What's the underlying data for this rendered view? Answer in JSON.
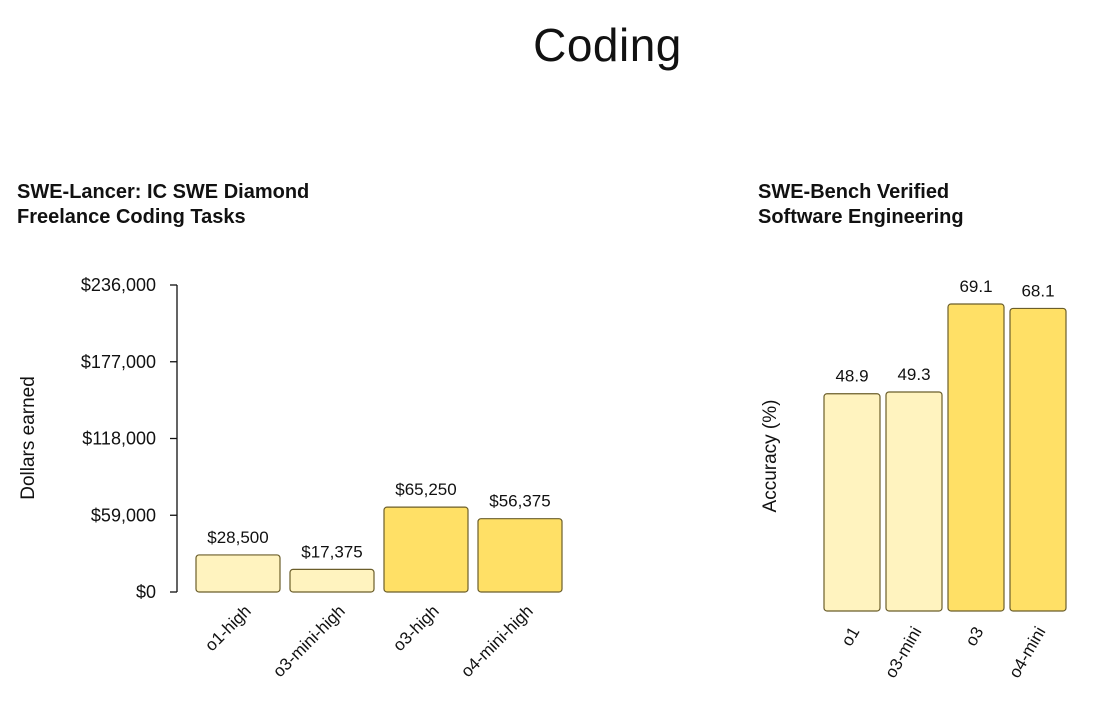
{
  "page": {
    "title": "Coding"
  },
  "colors": {
    "light_bar": "#FFF3BF",
    "dark_bar": "#FFE066",
    "bar_stroke": "#6B5E2A"
  },
  "chart_data": [
    {
      "type": "bar",
      "title_lines": [
        "SWE-Lancer: IC SWE Diamond",
        "Freelance Coding Tasks"
      ],
      "ylabel": "Dollars earned",
      "xlabel": "",
      "ylim": [
        0,
        236000
      ],
      "yticks": [
        0,
        59000,
        118000,
        177000,
        236000
      ],
      "ytick_labels": [
        "$0",
        "$59,000",
        "$118,000",
        "$177,000",
        "$236,000"
      ],
      "categories": [
        "o1-high",
        "o3-mini-high",
        "o3-high",
        "o4-mini-high"
      ],
      "values": [
        28500,
        17375,
        65250,
        56375
      ],
      "value_labels": [
        "$28,500",
        "$17,375",
        "$65,250",
        "$56,375"
      ],
      "bar_colors": [
        "#FFF3BF",
        "#FFF3BF",
        "#FFE066",
        "#FFE066"
      ],
      "grid": false
    },
    {
      "type": "bar",
      "title_lines": [
        "SWE-Bench Verified",
        "Software Engineering"
      ],
      "ylabel": "Accuracy (%)",
      "xlabel": "",
      "ylim": [
        0,
        69.1
      ],
      "categories": [
        "o1",
        "o3-mini",
        "o3",
        "o4-mini"
      ],
      "values": [
        48.9,
        49.3,
        69.1,
        68.1
      ],
      "value_labels": [
        "48.9",
        "49.3",
        "69.1",
        "68.1"
      ],
      "bar_colors": [
        "#FFF3BF",
        "#FFF3BF",
        "#FFE066",
        "#FFE066"
      ],
      "grid": false
    }
  ]
}
